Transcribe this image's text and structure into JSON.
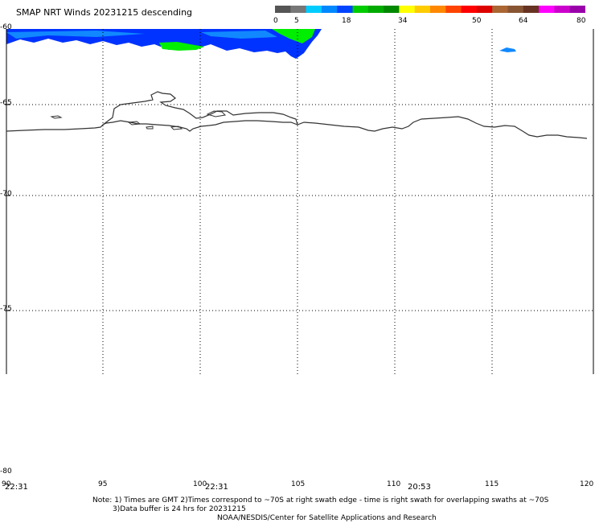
{
  "title": "SMAP NRT Winds  20231215 descending",
  "colorbar": {
    "labels": [
      "0",
      "5",
      "18",
      "34",
      "50",
      "64",
      "80"
    ],
    "segments": [
      {
        "color": "#555555"
      },
      {
        "color": "#777777"
      },
      {
        "color": "#00ccff"
      },
      {
        "color": "#0088ff"
      },
      {
        "color": "#0044ff"
      },
      {
        "color": "#00cc00"
      },
      {
        "color": "#00aa00"
      },
      {
        "color": "#008800"
      },
      {
        "color": "#ffff00"
      },
      {
        "color": "#ffcc00"
      },
      {
        "color": "#ff8800"
      },
      {
        "color": "#ff4400"
      },
      {
        "color": "#ff0000"
      },
      {
        "color": "#dd0000"
      },
      {
        "color": "#aa6633"
      },
      {
        "color": "#885533"
      },
      {
        "color": "#663322"
      },
      {
        "color": "#ff00ff"
      },
      {
        "color": "#cc00cc"
      },
      {
        "color": "#9900aa"
      }
    ]
  },
  "map": {
    "latitudes": [
      "-60",
      "-65",
      "-70",
      "-75",
      "-80"
    ],
    "longitudes": [
      "90",
      "95",
      "100",
      "105",
      "110",
      "115",
      "120"
    ],
    "wind_colors": {
      "blue": "#0033ff",
      "light_blue": "#1188ff",
      "green": "#00ee00"
    }
  },
  "times": [
    "22:31",
    "22:31",
    "20:53"
  ],
  "notes": {
    "line1": "Note: 1) Times are GMT 2)Times correspond to ~70S at right swath edge - time is right swath for overlapping swaths at ~70S",
    "line2": "3)Data buffer is 24 hrs for 20231215",
    "line3": "NOAA/NESDIS/Center for Satellite Applications and Research"
  }
}
